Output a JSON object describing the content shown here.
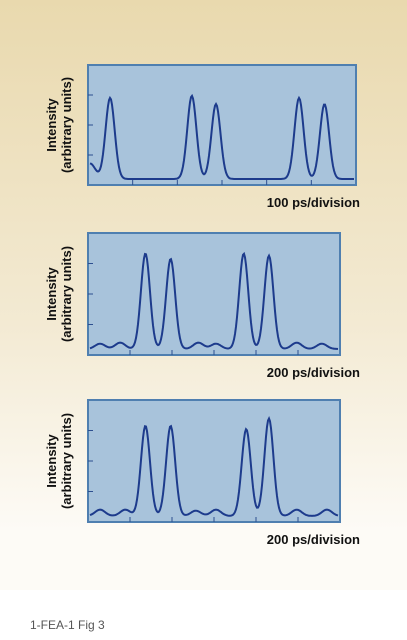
{
  "panels": [
    {
      "y_label": [
        "Intensity",
        "(arbitrary units)"
      ],
      "x_label": "100 ps/division"
    },
    {
      "y_label": [
        "Intensity",
        "(arbitrary units)"
      ],
      "x_label": "200 ps/division"
    },
    {
      "y_label": [
        "Intensity",
        "(arbitrary units)"
      ],
      "x_label": "200 ps/division"
    }
  ],
  "caption": "1-FEA-1 Fig 3"
}
